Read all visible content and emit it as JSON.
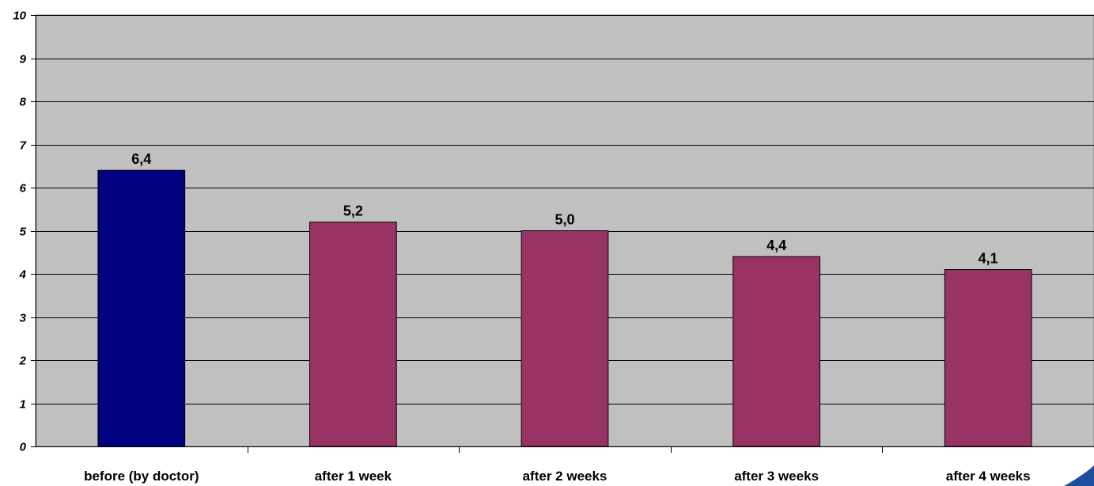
{
  "chart_data": {
    "type": "bar",
    "title": "",
    "xlabel": "",
    "ylabel": "",
    "ylim": [
      0,
      10
    ],
    "yticks": [
      "0",
      "1",
      "2",
      "3",
      "4",
      "5",
      "6",
      "7",
      "8",
      "9",
      "10"
    ],
    "grid": true,
    "legend": "none",
    "categories": [
      "before (by doctor)",
      "after 1 week",
      "after 2 weeks",
      "after 3 weeks",
      "after 4 weeks"
    ],
    "values": [
      6.4,
      5.2,
      5.0,
      4.4,
      4.1
    ],
    "data_labels": [
      "6,4",
      "5,2",
      "5,0",
      "4,4",
      "4,1"
    ],
    "bar_colors": [
      "#000080",
      "#993366",
      "#993366",
      "#993366",
      "#993366"
    ],
    "plot_background": "#c0c0c0",
    "gridline_color": "#000000"
  }
}
